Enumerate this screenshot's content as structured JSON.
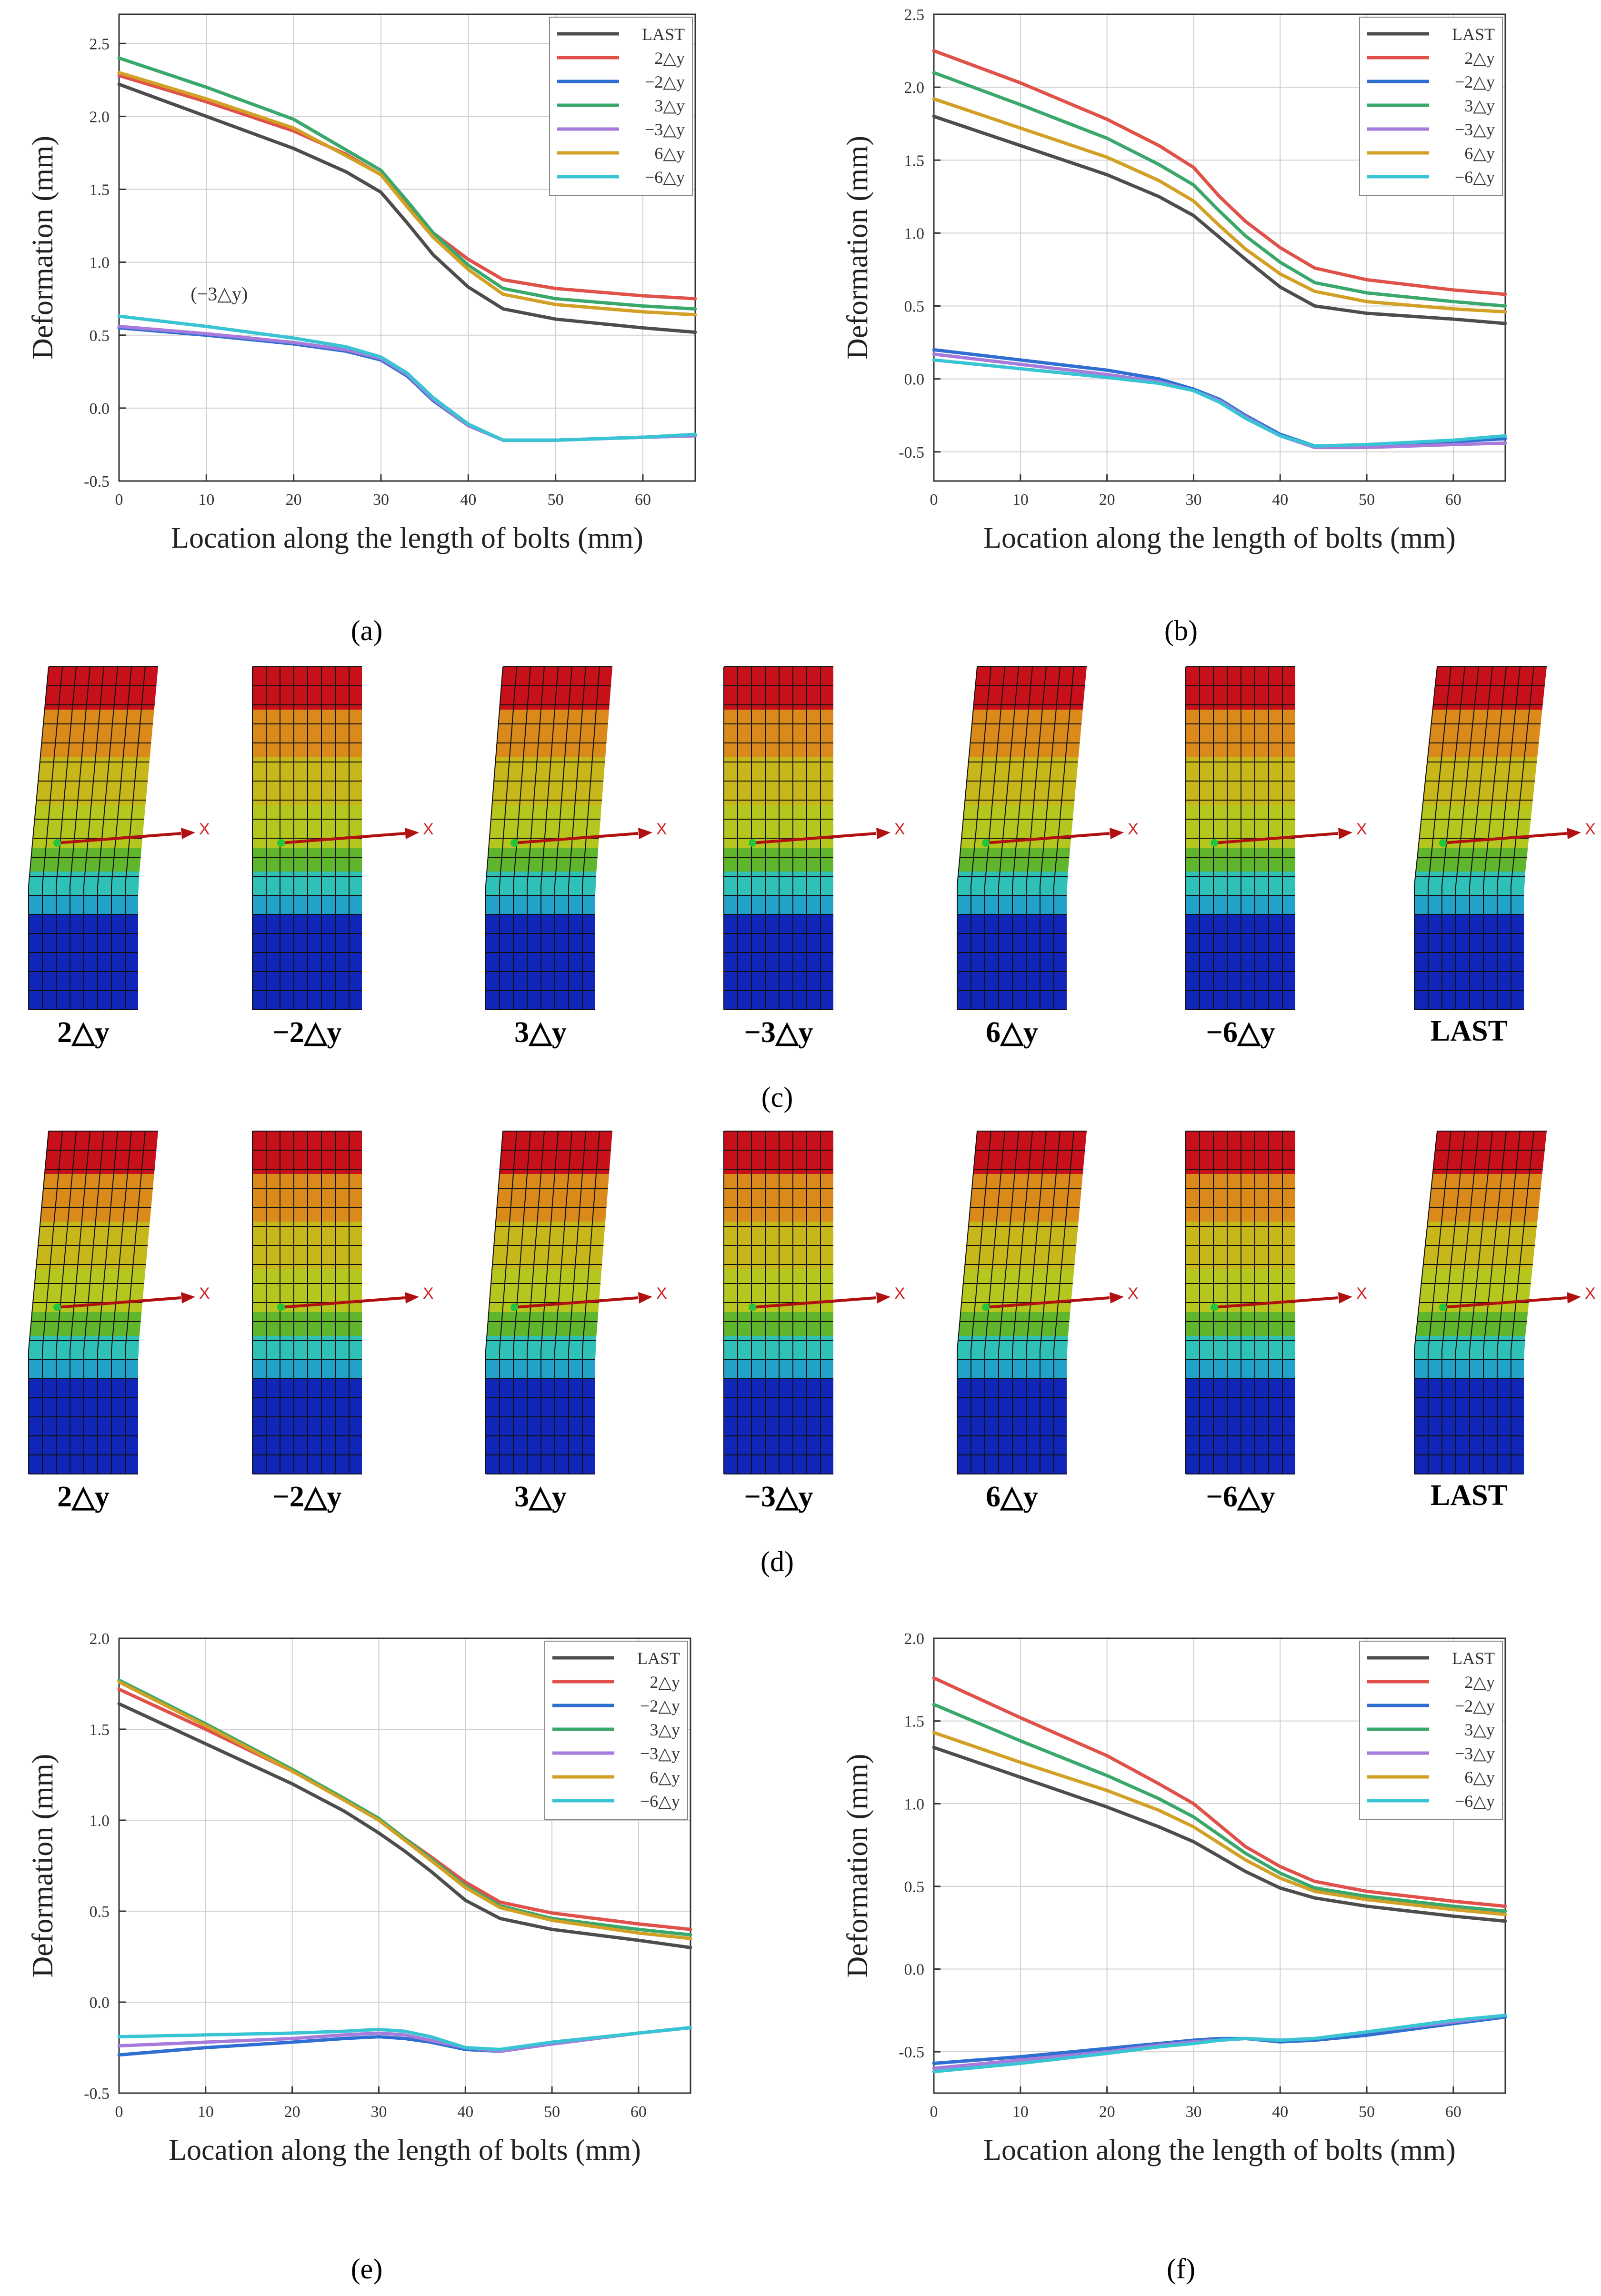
{
  "colors": {
    "LAST": "#4d4d4d",
    "2△y": "#e0514a",
    "-2△y": "#2e6fd1",
    "3△y": "#3aa86b",
    "-3△y": "#a77bdb",
    "6△y": "#d2a024",
    "-6△y": "#39c4d4"
  },
  "legend_labels": [
    "LAST",
    "2△y",
    "−2△y",
    "3△y",
    "−3△y",
    "6△y",
    "−6△y"
  ],
  "captions": {
    "a": "(a)",
    "b": "(b)",
    "c": "(c)",
    "d": "(d)",
    "e": "(e)",
    "f": "(f)"
  },
  "bolt_row_labels": [
    "2△y",
    "−2△y",
    "3△y",
    "−3△y",
    "6△y",
    "−6△y",
    "LAST"
  ],
  "bolt_axis_label": "X",
  "chart_data": [
    {
      "id": "a",
      "type": "line",
      "xlabel": "Location along the length of bolts (mm)",
      "ylabel": "Deformation (mm)",
      "xlim": [
        0,
        66
      ],
      "ylim": [
        -0.5,
        2.7
      ],
      "xticks": [
        0,
        10,
        20,
        30,
        40,
        50,
        60
      ],
      "yticks": [
        -0.5,
        0.0,
        0.5,
        1.0,
        1.5,
        2.0,
        2.5
      ],
      "grid": true,
      "legend": "top-right",
      "annotation": "(−3△y)",
      "x": [
        0,
        10,
        20,
        26,
        30,
        33,
        36,
        40,
        44,
        50,
        60,
        66
      ],
      "series": [
        {
          "key": "LAST",
          "values": [
            2.22,
            2.0,
            1.78,
            1.62,
            1.48,
            1.27,
            1.05,
            0.83,
            0.68,
            0.61,
            0.55,
            0.52
          ]
        },
        {
          "key": "2△y",
          "values": [
            2.28,
            2.1,
            1.9,
            1.74,
            1.6,
            1.4,
            1.2,
            1.02,
            0.88,
            0.82,
            0.77,
            0.75
          ]
        },
        {
          "key": "-2△y",
          "values": [
            0.55,
            0.5,
            0.44,
            0.39,
            0.33,
            0.22,
            0.05,
            -0.12,
            -0.22,
            -0.22,
            -0.2,
            -0.19
          ]
        },
        {
          "key": "3△y",
          "values": [
            2.4,
            2.2,
            1.98,
            1.77,
            1.63,
            1.42,
            1.2,
            0.98,
            0.82,
            0.75,
            0.7,
            0.68
          ]
        },
        {
          "key": "-3△y",
          "values": [
            0.56,
            0.51,
            0.45,
            0.4,
            0.34,
            0.23,
            0.06,
            -0.12,
            -0.22,
            -0.22,
            -0.2,
            -0.19
          ]
        },
        {
          "key": "6△y",
          "values": [
            2.3,
            2.12,
            1.92,
            1.73,
            1.6,
            1.38,
            1.17,
            0.95,
            0.78,
            0.71,
            0.66,
            0.64
          ]
        },
        {
          "key": "-6△y",
          "values": [
            0.63,
            0.56,
            0.48,
            0.42,
            0.35,
            0.24,
            0.07,
            -0.11,
            -0.22,
            -0.22,
            -0.2,
            -0.18
          ]
        }
      ]
    },
    {
      "id": "b",
      "type": "line",
      "xlabel": "Location along the length of bolts (mm)",
      "ylabel": "Deformation (mm)",
      "xlim": [
        0,
        66
      ],
      "ylim": [
        -0.7,
        2.5
      ],
      "xticks": [
        0,
        10,
        20,
        30,
        40,
        50,
        60
      ],
      "yticks": [
        -0.5,
        0.0,
        0.5,
        1.0,
        1.5,
        2.0,
        2.5
      ],
      "grid": true,
      "legend": "top-right",
      "x": [
        0,
        10,
        20,
        26,
        30,
        33,
        36,
        40,
        44,
        50,
        60,
        66
      ],
      "series": [
        {
          "key": "LAST",
          "values": [
            1.8,
            1.6,
            1.4,
            1.25,
            1.12,
            0.97,
            0.82,
            0.63,
            0.5,
            0.45,
            0.41,
            0.38
          ]
        },
        {
          "key": "2△y",
          "values": [
            2.25,
            2.03,
            1.78,
            1.6,
            1.45,
            1.25,
            1.08,
            0.9,
            0.76,
            0.68,
            0.61,
            0.58
          ]
        },
        {
          "key": "-2△y",
          "values": [
            0.2,
            0.13,
            0.06,
            0.0,
            -0.07,
            -0.14,
            -0.25,
            -0.38,
            -0.46,
            -0.46,
            -0.43,
            -0.41
          ]
        },
        {
          "key": "3△y",
          "values": [
            2.1,
            1.88,
            1.65,
            1.47,
            1.33,
            1.15,
            0.98,
            0.8,
            0.66,
            0.59,
            0.53,
            0.5
          ]
        },
        {
          "key": "-3△y",
          "values": [
            0.17,
            0.1,
            0.03,
            -0.02,
            -0.08,
            -0.15,
            -0.26,
            -0.39,
            -0.47,
            -0.47,
            -0.45,
            -0.44
          ]
        },
        {
          "key": "6△y",
          "values": [
            1.92,
            1.72,
            1.52,
            1.36,
            1.22,
            1.05,
            0.89,
            0.72,
            0.6,
            0.53,
            0.48,
            0.46
          ]
        },
        {
          "key": "-6△y",
          "values": [
            0.13,
            0.07,
            0.01,
            -0.03,
            -0.08,
            -0.16,
            -0.27,
            -0.39,
            -0.46,
            -0.45,
            -0.42,
            -0.39
          ]
        }
      ]
    },
    {
      "id": "e",
      "type": "line",
      "xlabel": "Location along the length of bolts (mm)",
      "ylabel": "Deformation (mm)",
      "xlim": [
        0,
        66
      ],
      "ylim": [
        -0.5,
        2.0
      ],
      "xticks": [
        0,
        10,
        20,
        30,
        40,
        50,
        60
      ],
      "yticks": [
        -0.5,
        0.0,
        0.5,
        1.0,
        1.5,
        2.0
      ],
      "grid": true,
      "legend": "top-right",
      "x": [
        0,
        10,
        20,
        26,
        30,
        33,
        36,
        40,
        44,
        50,
        60,
        66
      ],
      "series": [
        {
          "key": "LAST",
          "values": [
            1.64,
            1.42,
            1.2,
            1.05,
            0.93,
            0.83,
            0.72,
            0.56,
            0.46,
            0.4,
            0.34,
            0.3
          ]
        },
        {
          "key": "2△y",
          "values": [
            1.72,
            1.5,
            1.27,
            1.12,
            1.0,
            0.9,
            0.8,
            0.66,
            0.55,
            0.49,
            0.43,
            0.4
          ]
        },
        {
          "key": "-2△y",
          "values": [
            -0.29,
            -0.25,
            -0.22,
            -0.2,
            -0.19,
            -0.2,
            -0.22,
            -0.26,
            -0.27,
            -0.23,
            -0.17,
            -0.14
          ]
        },
        {
          "key": "3△y",
          "values": [
            1.77,
            1.53,
            1.28,
            1.12,
            1.01,
            0.9,
            0.79,
            0.64,
            0.53,
            0.46,
            0.4,
            0.37
          ]
        },
        {
          "key": "-3△y",
          "values": [
            -0.24,
            -0.22,
            -0.2,
            -0.18,
            -0.17,
            -0.18,
            -0.21,
            -0.25,
            -0.27,
            -0.23,
            -0.17,
            -0.14
          ]
        },
        {
          "key": "6△y",
          "values": [
            1.76,
            1.52,
            1.27,
            1.11,
            1.0,
            0.89,
            0.78,
            0.63,
            0.52,
            0.45,
            0.38,
            0.35
          ]
        },
        {
          "key": "-6△y",
          "values": [
            -0.19,
            -0.18,
            -0.17,
            -0.16,
            -0.15,
            -0.16,
            -0.19,
            -0.25,
            -0.26,
            -0.22,
            -0.17,
            -0.14
          ]
        }
      ]
    },
    {
      "id": "f",
      "type": "line",
      "xlabel": "Location along the length of bolts (mm)",
      "ylabel": "Deformation (mm)",
      "xlim": [
        0,
        66
      ],
      "ylim": [
        -0.75,
        2.0
      ],
      "xticks": [
        0,
        10,
        20,
        30,
        40,
        50,
        60
      ],
      "yticks": [
        -0.5,
        0.0,
        0.5,
        1.0,
        1.5,
        2.0
      ],
      "grid": true,
      "legend": "top-right",
      "x": [
        0,
        10,
        20,
        26,
        30,
        33,
        36,
        40,
        44,
        50,
        60,
        66
      ],
      "series": [
        {
          "key": "LAST",
          "values": [
            1.34,
            1.16,
            0.98,
            0.86,
            0.77,
            0.68,
            0.59,
            0.49,
            0.43,
            0.38,
            0.32,
            0.29
          ]
        },
        {
          "key": "2△y",
          "values": [
            1.76,
            1.52,
            1.29,
            1.12,
            1.0,
            0.87,
            0.74,
            0.62,
            0.53,
            0.47,
            0.41,
            0.38
          ]
        },
        {
          "key": "-2△y",
          "values": [
            -0.57,
            -0.53,
            -0.48,
            -0.45,
            -0.43,
            -0.42,
            -0.42,
            -0.44,
            -0.43,
            -0.4,
            -0.33,
            -0.29
          ]
        },
        {
          "key": "3△y",
          "values": [
            1.6,
            1.38,
            1.17,
            1.03,
            0.92,
            0.81,
            0.7,
            0.58,
            0.49,
            0.44,
            0.38,
            0.35
          ]
        },
        {
          "key": "-3△y",
          "values": [
            -0.6,
            -0.55,
            -0.5,
            -0.46,
            -0.44,
            -0.43,
            -0.42,
            -0.43,
            -0.42,
            -0.38,
            -0.32,
            -0.28
          ]
        },
        {
          "key": "6△y",
          "values": [
            1.43,
            1.25,
            1.08,
            0.96,
            0.86,
            0.76,
            0.66,
            0.55,
            0.47,
            0.42,
            0.36,
            0.33
          ]
        },
        {
          "key": "-6△y",
          "values": [
            -0.62,
            -0.57,
            -0.51,
            -0.47,
            -0.45,
            -0.43,
            -0.42,
            -0.43,
            -0.42,
            -0.38,
            -0.31,
            -0.28
          ]
        }
      ]
    }
  ]
}
